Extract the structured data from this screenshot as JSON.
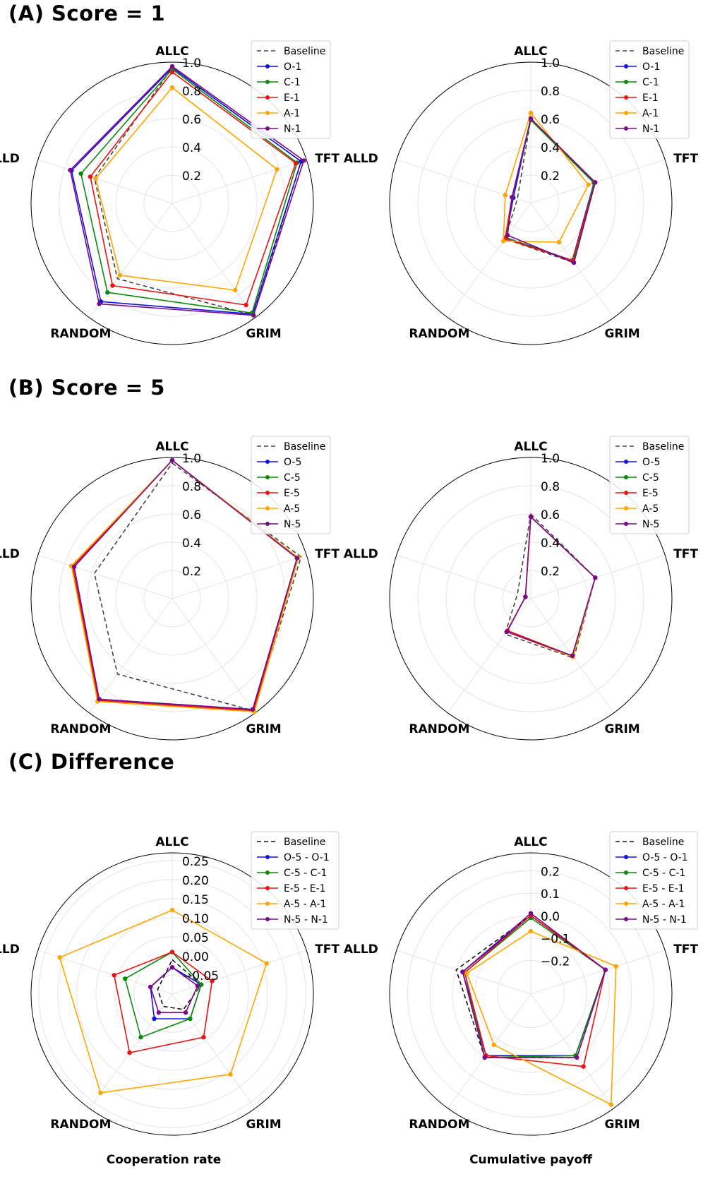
{
  "sections": [
    {
      "title": "(A) Score = 1"
    },
    {
      "title": "(B) Score = 5"
    },
    {
      "title": "(C) Difference"
    }
  ],
  "footer": {
    "left_label": "Cooperation rate",
    "right_label": "Cumulative payoff"
  },
  "colors": {
    "Baseline": "#444444",
    "O": "#1010e0",
    "C": "#0a8a0a",
    "E": "#ee1111",
    "A": "#ffa500",
    "N": "#7a0a8a"
  },
  "chart_data": [
    {
      "type": "radar",
      "panel": "A-left",
      "title": "",
      "axes": [
        "ALLC",
        "TFT",
        "GRIM",
        "RANDOM",
        "ALLD"
      ],
      "range": [
        0,
        1
      ],
      "ticks": [
        "0.2",
        "0.4",
        "0.6",
        "0.8",
        "1.0"
      ],
      "tick_values": [
        0.2,
        0.4,
        0.6,
        0.8,
        1.0
      ],
      "series": [
        {
          "name": "Baseline",
          "style": "dashed",
          "color": "#444444",
          "values": [
            0.96,
            0.96,
            0.98,
            0.66,
            0.58
          ]
        },
        {
          "name": "O-1",
          "color": "#1010e0",
          "values": [
            0.96,
            0.96,
            0.97,
            0.86,
            0.75
          ]
        },
        {
          "name": "C-1",
          "color": "#0a8a0a",
          "values": [
            0.95,
            0.93,
            0.96,
            0.78,
            0.68
          ]
        },
        {
          "name": "E-1",
          "color": "#ee1111",
          "values": [
            0.93,
            0.92,
            0.89,
            0.72,
            0.61
          ]
        },
        {
          "name": "A-1",
          "color": "#ffa500",
          "values": [
            0.82,
            0.78,
            0.76,
            0.63,
            0.57
          ]
        },
        {
          "name": "N-1",
          "color": "#7a0a8a",
          "values": [
            0.97,
            0.98,
            0.98,
            0.88,
            0.76
          ]
        }
      ]
    },
    {
      "type": "radar",
      "panel": "A-right",
      "title": "",
      "axes": [
        "ALLC",
        "TFT",
        "GRIM",
        "RANDOM",
        "ALLD"
      ],
      "range": [
        0,
        1
      ],
      "ticks": [
        "0.2",
        "0.4",
        "0.6",
        "0.8",
        "1.0"
      ],
      "tick_values": [
        0.2,
        0.4,
        0.6,
        0.8,
        1.0
      ],
      "series": [
        {
          "name": "Baseline",
          "style": "dashed",
          "color": "#444444",
          "values": [
            0.6,
            0.48,
            0.52,
            0.31,
            0.1
          ]
        },
        {
          "name": "O-1",
          "color": "#1010e0",
          "values": [
            0.6,
            0.47,
            0.5,
            0.3,
            0.13
          ]
        },
        {
          "name": "C-1",
          "color": "#0a8a0a",
          "values": [
            0.59,
            0.47,
            0.51,
            0.3,
            0.14
          ]
        },
        {
          "name": "E-1",
          "color": "#ee1111",
          "values": [
            0.6,
            0.48,
            0.5,
            0.31,
            0.14
          ]
        },
        {
          "name": "A-1",
          "color": "#ffa500",
          "values": [
            0.64,
            0.43,
            0.34,
            0.33,
            0.19
          ]
        },
        {
          "name": "N-1",
          "color": "#7a0a8a",
          "values": [
            0.6,
            0.48,
            0.52,
            0.28,
            0.14
          ]
        }
      ]
    },
    {
      "type": "radar",
      "panel": "B-left",
      "title": "",
      "axes": [
        "ALLC",
        "TFT",
        "GRIM",
        "RANDOM",
        "ALLD"
      ],
      "range": [
        0,
        1
      ],
      "ticks": [
        "0.2",
        "0.4",
        "0.6",
        "0.8",
        "1.0"
      ],
      "tick_values": [
        0.2,
        0.4,
        0.6,
        0.8,
        1.0
      ],
      "series": [
        {
          "name": "Baseline",
          "style": "dashed",
          "color": "#444444",
          "values": [
            0.96,
            0.96,
            0.98,
            0.66,
            0.58
          ]
        },
        {
          "name": "O-5",
          "color": "#1010e0",
          "values": [
            0.98,
            0.93,
            0.97,
            0.88,
            0.74
          ]
        },
        {
          "name": "C-5",
          "color": "#0a8a0a",
          "values": [
            0.98,
            0.93,
            0.98,
            0.89,
            0.75
          ]
        },
        {
          "name": "E-5",
          "color": "#ee1111",
          "values": [
            0.98,
            0.93,
            0.98,
            0.89,
            0.74
          ]
        },
        {
          "name": "A-5",
          "color": "#ffa500",
          "values": [
            0.98,
            0.94,
            0.99,
            0.9,
            0.75
          ]
        },
        {
          "name": "N-5",
          "color": "#7a0a8a",
          "values": [
            0.98,
            0.93,
            0.97,
            0.88,
            0.73
          ]
        }
      ]
    },
    {
      "type": "radar",
      "panel": "B-right",
      "title": "",
      "axes": [
        "ALLC",
        "TFT",
        "GRIM",
        "RANDOM",
        "ALLD"
      ],
      "range": [
        0,
        1
      ],
      "ticks": [
        "0.2",
        "0.4",
        "0.6",
        "0.8",
        "1.0"
      ],
      "tick_values": [
        0.2,
        0.4,
        0.6,
        0.8,
        1.0
      ],
      "series": [
        {
          "name": "Baseline",
          "style": "dashed",
          "color": "#444444",
          "values": [
            0.6,
            0.48,
            0.52,
            0.31,
            0.1
          ]
        },
        {
          "name": "O-5",
          "color": "#1010e0",
          "values": [
            0.58,
            0.48,
            0.5,
            0.29,
            0.04
          ]
        },
        {
          "name": "C-5",
          "color": "#0a8a0a",
          "values": [
            0.58,
            0.48,
            0.5,
            0.29,
            0.04
          ]
        },
        {
          "name": "E-5",
          "color": "#ee1111",
          "values": [
            0.58,
            0.48,
            0.5,
            0.28,
            0.04
          ]
        },
        {
          "name": "A-5",
          "color": "#ffa500",
          "values": [
            0.58,
            0.48,
            0.51,
            0.29,
            0.04
          ]
        },
        {
          "name": "N-5",
          "color": "#7a0a8a",
          "values": [
            0.58,
            0.48,
            0.5,
            0.29,
            0.04
          ]
        }
      ]
    },
    {
      "type": "radar",
      "panel": "C-left",
      "title": "",
      "xlabel": "Cooperation rate",
      "axes": [
        "ALLC",
        "TFT",
        "GRIM",
        "RANDOM",
        "ALLD"
      ],
      "range": [
        -0.1,
        0.27
      ],
      "ticks": [
        "−0.05",
        "0.00",
        "0.05",
        "0.10",
        "0.15",
        "0.20",
        "0.25"
      ],
      "tick_values": [
        -0.05,
        0.0,
        0.05,
        0.1,
        0.15,
        0.2,
        0.25
      ],
      "series": [
        {
          "name": "Baseline",
          "style": "dashed",
          "color": "#111111",
          "values": [
            -0.01,
            -0.02,
            -0.05,
            -0.06,
            -0.06
          ]
        },
        {
          "name": "O-5 - O-1",
          "color": "#1010e0",
          "values": [
            -0.03,
            -0.02,
            -0.02,
            -0.02,
            -0.04
          ]
        },
        {
          "name": "C-5 - C-1",
          "color": "#0a8a0a",
          "values": [
            0.01,
            -0.02,
            -0.02,
            0.04,
            0.03
          ]
        },
        {
          "name": "E-5 - E-1",
          "color": "#ee1111",
          "values": [
            0.01,
            0.01,
            0.04,
            0.09,
            0.06
          ]
        },
        {
          "name": "A-5 - A-1",
          "color": "#ffa500",
          "values": [
            0.12,
            0.16,
            0.16,
            0.22,
            0.21
          ]
        },
        {
          "name": "N-5 - N-1",
          "color": "#7a0a8a",
          "values": [
            -0.03,
            -0.03,
            -0.04,
            -0.04,
            -0.04
          ]
        }
      ]
    },
    {
      "type": "radar",
      "panel": "C-right",
      "title": "",
      "xlabel": "Cumulative payoff",
      "axes": [
        "ALLC",
        "TFT",
        "GRIM",
        "RANDOM",
        "ALLD"
      ],
      "range": [
        -0.35,
        0.28
      ],
      "ticks": [
        "−0.2",
        "−0.1",
        "0.0",
        "0.1",
        "0.2"
      ],
      "tick_values": [
        -0.2,
        -0.1,
        0.0,
        0.1,
        0.2
      ],
      "series": [
        {
          "name": "Baseline",
          "style": "dashed",
          "color": "#111111",
          "values": [
            0.0,
            0.0,
            0.0,
            0.0,
            0.0
          ]
        },
        {
          "name": "O-5 - O-1",
          "color": "#1010e0",
          "values": [
            0.0,
            0.0,
            -0.01,
            -0.01,
            -0.03
          ]
        },
        {
          "name": "C-5 - C-1",
          "color": "#0a8a0a",
          "values": [
            -0.01,
            0.0,
            -0.01,
            0.0,
            -0.04
          ]
        },
        {
          "name": "E-5 - E-1",
          "color": "#ee1111",
          "values": [
            0.0,
            0.0,
            0.05,
            -0.01,
            -0.04
          ]
        },
        {
          "name": "A-5 - A-1",
          "color": "#ffa500",
          "values": [
            -0.07,
            0.05,
            0.26,
            -0.07,
            -0.05
          ]
        },
        {
          "name": "N-5 - N-1",
          "color": "#7a0a8a",
          "values": [
            0.01,
            0.0,
            0.0,
            0.0,
            -0.03
          ]
        }
      ]
    }
  ]
}
